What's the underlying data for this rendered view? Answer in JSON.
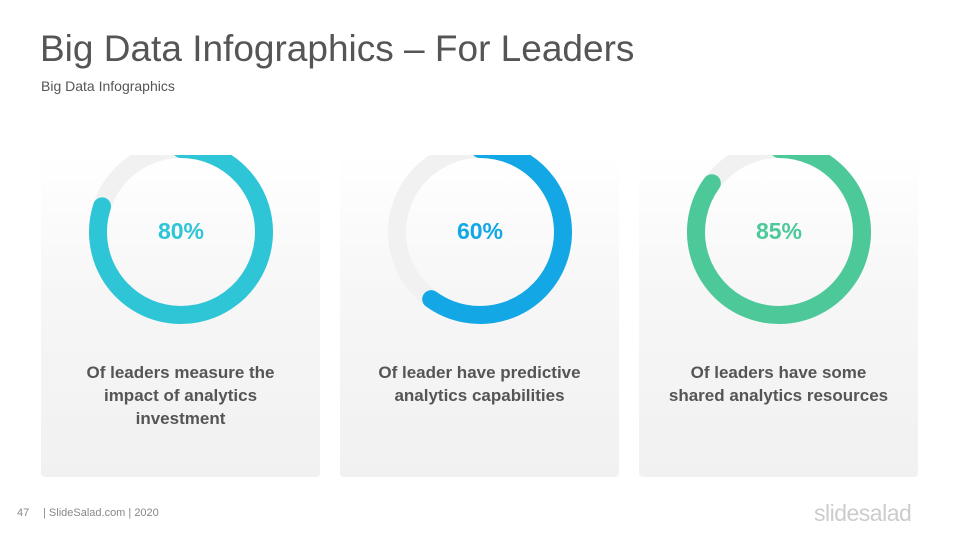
{
  "header": {
    "title": "Big Data Infographics – For Leaders",
    "subtitle": "Big Data Infographics"
  },
  "chart_data": [
    {
      "type": "donut",
      "values": [
        80
      ],
      "value_labels": [
        "80%"
      ],
      "color": "#2ec5d6",
      "caption": "Of leaders measure the impact of analytics investment"
    },
    {
      "type": "donut",
      "values": [
        60
      ],
      "value_labels": [
        "60%"
      ],
      "color": "#14a7e6",
      "caption": "Of leader have predictive analytics capabilities"
    },
    {
      "type": "donut",
      "values": [
        85
      ],
      "value_labels": [
        "85%"
      ],
      "color": "#4dc999",
      "caption": "Of leaders have some shared analytics resources"
    }
  ],
  "footer": {
    "page": "47",
    "source": "| SlideSalad.com | 2020",
    "logo": "slidesalad"
  }
}
